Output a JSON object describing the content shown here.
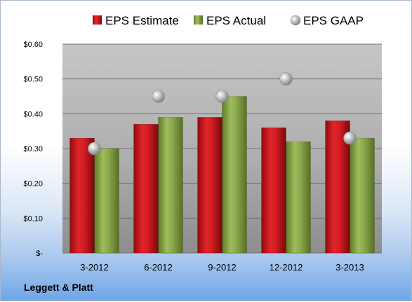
{
  "brand": "Leggett & Platt",
  "chart_data": {
    "type": "bar",
    "categories": [
      "3-2012",
      "6-2012",
      "9-2012",
      "12-2012",
      "3-2013"
    ],
    "series": [
      {
        "name": "EPS Estimate",
        "kind": "bar",
        "color": "#c0161c",
        "values": [
          0.33,
          0.37,
          0.39,
          0.36,
          0.38
        ]
      },
      {
        "name": "EPS Actual",
        "kind": "bar",
        "color": "#8aa64a",
        "values": [
          0.3,
          0.39,
          0.45,
          0.32,
          0.33
        ]
      },
      {
        "name": "EPS GAAP",
        "kind": "marker",
        "color": "#a6a6a6",
        "values": [
          0.3,
          0.45,
          0.45,
          0.5,
          0.33
        ]
      }
    ],
    "yticks": [
      "$-",
      "$0.10",
      "$0.20",
      "$0.30",
      "$0.40",
      "$0.50",
      "$0.60"
    ],
    "ylim": [
      0,
      0.6
    ],
    "grid": true,
    "legend_position": "top"
  }
}
